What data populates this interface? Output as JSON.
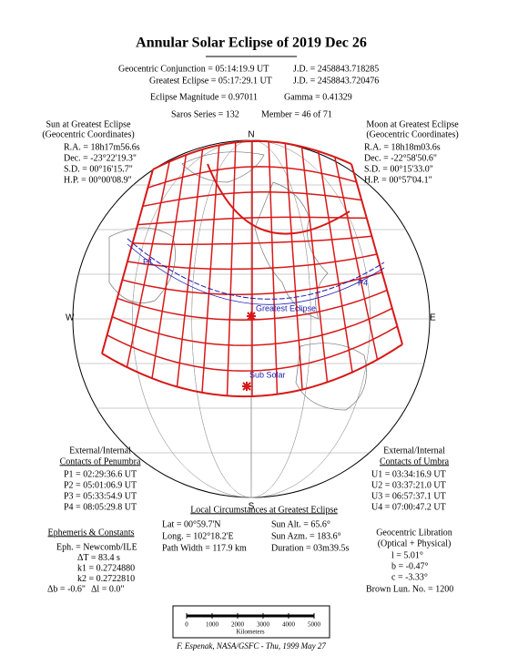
{
  "title": "Annular Solar Eclipse of 2019 Dec 26",
  "header": {
    "conjunction": "Geocentric Conjunction = 05:14:19.9 UT",
    "conjunction_jd": "J.D. = 2458843.718285",
    "greatest": "Greatest Eclipse = 05:17:29.1 UT",
    "greatest_jd": "J.D. = 2458843.720476",
    "magnitude": "Eclipse Magnitude = 0.97011",
    "gamma": "Gamma = 0.41329",
    "saros": "Saros Series = 132",
    "member": "Member = 46 of 71"
  },
  "sun": {
    "title": [
      "Sun at Greatest Eclipse",
      "(Geocentric Coordinates)"
    ],
    "lines": [
      "R.A. = 18h17m56.6s",
      "Dec. = -23°22'19.3\"",
      "S.D. = 00°16'15.7\"",
      "H.P. = 00°00'08.9\""
    ]
  },
  "moon": {
    "title": [
      "Moon at Greatest Eclipse",
      "(Geocentric Coordinates)"
    ],
    "lines": [
      "R.A. = 18h18m03.6s",
      "Dec. = -22°58'50.6\"",
      "S.D. = 00°15'33.0\"",
      "H.P. = 00°57'04.1\""
    ]
  },
  "map": {
    "north": "N",
    "south": "S",
    "east": "E",
    "west": "W",
    "p1": "P1",
    "p4": "P4",
    "greatest": "Greatest Eclipse",
    "sub_solar": "Sub Solar"
  },
  "penumbra": {
    "title": [
      "External/Internal",
      "Contacts of Penumbra"
    ],
    "lines": [
      "P1 = 02:29:36.6 UT",
      "P2 = 05:01:06.9 UT",
      "P3 = 05:33:54.9 UT",
      "P4 = 08:05:29.8 UT"
    ]
  },
  "umbra": {
    "title": [
      "External/Internal",
      "Contacts of Umbra"
    ],
    "lines": [
      "U1 = 03:34:16.9 UT",
      "U2 = 03:37:21.0 UT",
      "U3 = 06:57:37.1 UT",
      "U4 = 07:00:47.2 UT"
    ]
  },
  "local": {
    "title": "Local Circumstances at Greatest Eclipse",
    "lines": [
      [
        "Lat = 00°59.7'N",
        "Sun Alt. = 65.6°"
      ],
      [
        "Long. = 102°18.2'E",
        "Sun Azm. = 183.6°"
      ],
      [
        "Path Width = 117.9 km",
        "Duration = 03m39.5s"
      ]
    ]
  },
  "ephemeris": {
    "title": "Ephemeris & Constants",
    "lines": [
      "Eph. = Newcomb/ILE",
      "ΔT = 83.4 s",
      "k1 = 0.2724880",
      "k2 = 0.2722810"
    ],
    "db": "Δb = -0.6\"",
    "dl": "Δl = 0.0\""
  },
  "libration": {
    "title": [
      "Geocentric Libration",
      "(Optical + Physical)"
    ],
    "lines": [
      "l = 5.01°",
      "b = -0.47°",
      "c = -3.33°"
    ],
    "brown": "Brown Lun. No. = 1200"
  },
  "scale": {
    "ticks": [
      0,
      1000,
      2000,
      3000,
      4000,
      5000
    ],
    "unit": "Kilometers"
  },
  "footer": "F. Espenak, NASA/GSFC - Thu, 1999 May 27"
}
